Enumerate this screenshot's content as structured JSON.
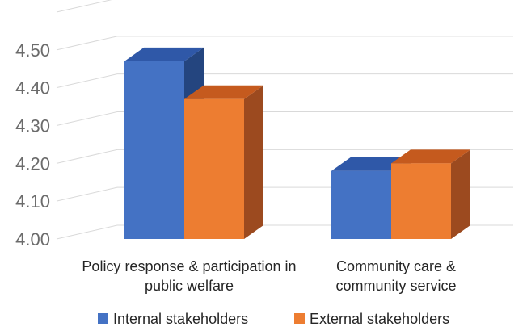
{
  "chart_data": {
    "type": "bar",
    "style": "3d-clustered-column",
    "categories": [
      [
        "Policy response & participation in",
        "public welfare"
      ],
      [
        "Community care &",
        "community service"
      ]
    ],
    "series": [
      {
        "name": "Internal stakeholders",
        "values": [
          4.47,
          4.18
        ]
      },
      {
        "name": "External stakeholders",
        "values": [
          4.37,
          4.2
        ]
      }
    ],
    "y_ticks": [
      "4.00",
      "4.10",
      "4.20",
      "4.30",
      "4.40",
      "4.50"
    ],
    "ylim": [
      4.0,
      4.6
    ],
    "grid": true,
    "legend_position": "bottom",
    "colors": {
      "series_front": [
        "#4472C4",
        "#ED7D31"
      ],
      "series_top": [
        "#2F58A8",
        "#C55A1E"
      ],
      "series_side": [
        "#24457F",
        "#9C4A1F"
      ],
      "grid": "#D9D9D9",
      "tick_text": "#6B6B6B"
    }
  }
}
